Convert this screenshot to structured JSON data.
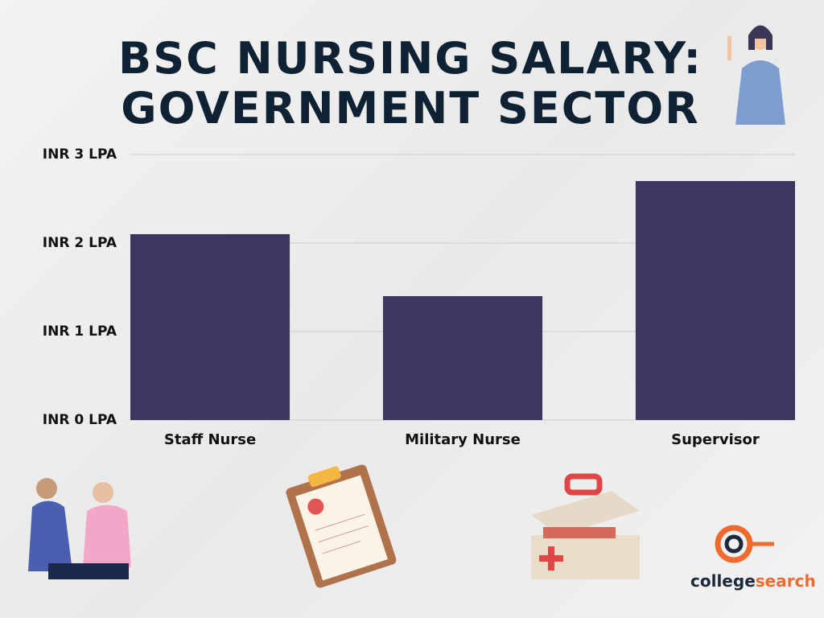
{
  "chart_data": {
    "type": "bar",
    "title": "BSC NURSING SALARY: GOVERNMENT SECTOR",
    "categories": [
      "Staff Nurse",
      "Military Nurse",
      "Supervisor"
    ],
    "values": [
      2.1,
      1.4,
      2.7
    ],
    "color": "#3d365f",
    "ylim": [
      0,
      3
    ],
    "yticks": [
      {
        "value": 0,
        "label": "INR 0 LPA"
      },
      {
        "value": 1,
        "label": "INR 1 LPA"
      },
      {
        "value": 2,
        "label": "INR 2 LPA"
      },
      {
        "value": 3,
        "label": "INR 3 LPA"
      }
    ],
    "grid": true
  },
  "logo": {
    "part1": "college",
    "part2": "search"
  }
}
